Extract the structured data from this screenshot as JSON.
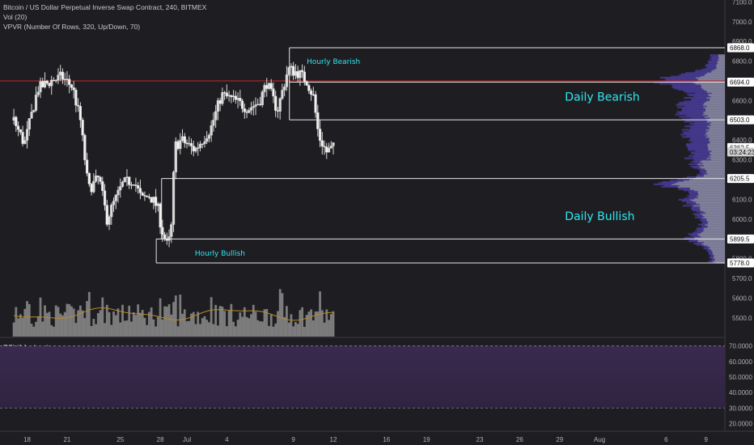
{
  "header": {
    "title": "Bitcoin / US Dollar Perpetual Inverse Swap Contract, 240, BITMEX",
    "volume_indicator": "Vol (20)",
    "vpvr_indicator": "VPVR (Number Of Rows, 320, Up/Down, 70)",
    "rsi_indicator": "RSI (14, close)"
  },
  "colors": {
    "background": "#1e1e22",
    "candle": "#d9d9d9",
    "level_line": "#e6e6e6",
    "red_line": "#c62828",
    "zone_text": "#2fe6f0",
    "vpvr_up": "#8a8aa8",
    "vpvr_down": "#4b3c9c",
    "rsi_band": "#3a2a4e",
    "volume_bar": "#8d8d8d",
    "volume_ma": "#b98a2a"
  },
  "chart_data": {
    "type": "candlestick",
    "price_axis": {
      "min": 5400,
      "max": 7100,
      "ticks": [
        "7100.0",
        "7000.0",
        "6900.0",
        "6800.0",
        "6600.0",
        "6500.0",
        "6400.0",
        "6300.0",
        "6100.0",
        "6000.0",
        "5900.0",
        "5800.0",
        "5700.0",
        "5600.0",
        "5500.0"
      ]
    },
    "price_tags": [
      {
        "label": "6868.0",
        "value": 6868
      },
      {
        "label": "6694.0",
        "value": 6694
      },
      {
        "label": "6503.0",
        "value": 6503
      },
      {
        "label": "6362.5",
        "value": 6362.5
      },
      {
        "label": "03:24:23",
        "value": 6340,
        "style": "countdown"
      },
      {
        "label": "6205.5",
        "value": 6205.5
      },
      {
        "label": "5899.5",
        "value": 5899.5
      },
      {
        "label": "5778.0",
        "value": 5778
      }
    ],
    "red_line_price": 6700,
    "levels": [
      {
        "price": 6868,
        "from_day": 7.7,
        "to": "axis"
      },
      {
        "price": 6694,
        "from_day": 7.7,
        "to": "axis"
      },
      {
        "price": 6503,
        "from_day": 7.7,
        "to": "axis"
      },
      {
        "price": 6205.5,
        "from_day": -1.9,
        "to": "axis"
      },
      {
        "price": 5899.5,
        "from_day": -2.3,
        "to": "axis"
      },
      {
        "price": 5778,
        "from_day": -2.3,
        "to": "axis"
      }
    ],
    "zones": [
      {
        "label": "Hourly Bearish",
        "price": 6787,
        "day": 9.0,
        "size": "small"
      },
      {
        "label": "Daily Bearish",
        "price": 6600,
        "day": 28.4,
        "size": "large"
      },
      {
        "label": "Daily Bullish",
        "price": 5995,
        "day": 28.4,
        "size": "large"
      },
      {
        "label": "Hourly Bullish",
        "price": 5815,
        "day": 0.6,
        "size": "small"
      }
    ],
    "x_axis": {
      "ticks": [
        {
          "label": "18",
          "day": -12
        },
        {
          "label": "21",
          "day": -9
        },
        {
          "label": "25",
          "day": -5
        },
        {
          "label": "28",
          "day": -2
        },
        {
          "label": "Jul",
          "day": 0
        },
        {
          "label": "4",
          "day": 3
        },
        {
          "label": "9",
          "day": 8
        },
        {
          "label": "12",
          "day": 11
        },
        {
          "label": "16",
          "day": 15
        },
        {
          "label": "19",
          "day": 18
        },
        {
          "label": "23",
          "day": 22
        },
        {
          "label": "26",
          "day": 25
        },
        {
          "label": "29",
          "day": 28
        },
        {
          "label": "Aug",
          "day": 31
        },
        {
          "label": "6",
          "day": 36
        },
        {
          "label": "9",
          "day": 39
        }
      ]
    },
    "candle_path": [
      [
        -13.0,
        6500
      ],
      [
        -12.2,
        6380
      ],
      [
        -11.2,
        6660
      ],
      [
        -10.2,
        6700
      ],
      [
        -9.4,
        6720
      ],
      [
        -8.6,
        6670
      ],
      [
        -8.0,
        6500
      ],
      [
        -7.4,
        6150
      ],
      [
        -6.6,
        6210
      ],
      [
        -6.0,
        6000
      ],
      [
        -5.5,
        6080
      ],
      [
        -4.8,
        6180
      ],
      [
        -4.0,
        6200
      ],
      [
        -3.4,
        6100
      ],
      [
        -2.8,
        6120
      ],
      [
        -2.2,
        6060
      ],
      [
        -1.9,
        5950
      ],
      [
        -1.5,
        5870
      ],
      [
        -1.2,
        5910
      ],
      [
        -0.9,
        6370
      ],
      [
        -0.4,
        6400
      ],
      [
        0.6,
        6350
      ],
      [
        1.8,
        6460
      ],
      [
        2.6,
        6630
      ],
      [
        3.6,
        6600
      ],
      [
        4.6,
        6560
      ],
      [
        5.4,
        6590
      ],
      [
        6.0,
        6690
      ],
      [
        6.8,
        6550
      ],
      [
        7.6,
        6760
      ],
      [
        8.4,
        6740
      ],
      [
        9.0,
        6700
      ],
      [
        9.5,
        6620
      ],
      [
        9.9,
        6420
      ],
      [
        10.5,
        6340
      ],
      [
        11.0,
        6362
      ]
    ],
    "volume_axis_note": "Volume bars shown in lower portion of price pane",
    "vpvr": "Volume profile histogram on right edge",
    "rsi": {
      "ticks": [
        "70.0000",
        "60.0000",
        "50.0000",
        "40.0000",
        "30.0000",
        "20.0000"
      ],
      "min": 15,
      "max": 75,
      "upper_band": 70,
      "lower_band": 30
    }
  }
}
